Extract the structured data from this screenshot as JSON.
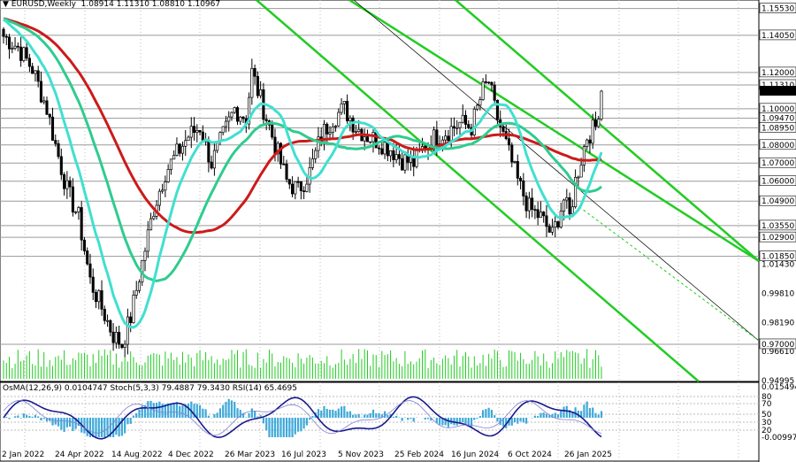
{
  "header": {
    "symbol": "EURUSD,Weekly",
    "ohlc": "1.08914 1.11310 1.08810 1.10967"
  },
  "price_labels": [
    {
      "text": "1.15530",
      "y": 1.1553,
      "hl": true
    },
    {
      "text": "1.14050",
      "y": 1.1405,
      "hl": true
    },
    {
      "text": "1.12000",
      "y": 1.12,
      "hl": true
    },
    {
      "text": "1.11310",
      "y": 1.1131,
      "hl": true
    },
    {
      "text": "1.10967",
      "y": 1.10967,
      "hl": false,
      "current": true
    },
    {
      "text": "1.10000",
      "y": 1.1,
      "hl": true
    },
    {
      "text": "1.09470",
      "y": 1.0947,
      "hl": true
    },
    {
      "text": "1.08950",
      "y": 1.0895,
      "hl": true
    },
    {
      "text": "1.08000",
      "y": 1.08,
      "hl": true
    },
    {
      "text": "1.07000",
      "y": 1.07,
      "hl": true
    },
    {
      "text": "1.06000",
      "y": 1.06,
      "hl": true
    },
    {
      "text": "1.04900",
      "y": 1.049,
      "hl": true
    },
    {
      "text": "1.03550",
      "y": 1.0355,
      "hl": true
    },
    {
      "text": "1.02900",
      "y": 1.029,
      "hl": true
    },
    {
      "text": "1.01850",
      "y": 1.0185,
      "hl": true
    },
    {
      "text": "1.01430",
      "y": 1.0143,
      "hl": false
    },
    {
      "text": "0.99810",
      "y": 0.9981,
      "hl": false
    },
    {
      "text": "0.98190",
      "y": 0.9819,
      "hl": false
    },
    {
      "text": "0.97000",
      "y": 0.97,
      "hl": true
    },
    {
      "text": "0.96610",
      "y": 0.9661,
      "hl": false
    },
    {
      "text": "0.94995",
      "y": 0.94995,
      "hl": false
    }
  ],
  "x_labels": [
    "2 Jan 2022",
    "24 Apr 2022",
    "14 Aug 2022",
    "4 Dec 2022",
    "26 Mar 2023",
    "16 Jul 2023",
    "5 Nov 2023",
    "25 Feb 2024",
    "16 Jun 2024",
    "6 Oct 2024",
    "26 Jan 2025"
  ],
  "indicator": {
    "title": "OsMA(12,26,9) 0.0104747  Stoch(5,3,3) 79.4887 79.3430  RSI(14) 65.4695",
    "levels": [
      "0.015494",
      "80",
      "70",
      "50",
      "30",
      "20",
      "-0.009970"
    ]
  },
  "colors": {
    "candle": "#000000",
    "ma_red": "#cc1a1a",
    "ma_green": "#2ecc8f",
    "ma_cyan": "#40e0d0",
    "channel": "#22cc22",
    "grid": "#9a9a9a",
    "volume": "#22cc22",
    "osma": "#3fa9d9",
    "stoch": "#1a1a8c",
    "rsi": "#8080d0"
  },
  "chart_data": {
    "type": "candlestick",
    "title": "EURUSD,Weekly",
    "ylim": [
      0.94995,
      1.16
    ],
    "x_tick_labels": [
      "2 Jan 2022",
      "24 Apr 2022",
      "14 Aug 2022",
      "4 Dec 2022",
      "26 Mar 2023",
      "16 Jul 2023",
      "5 Nov 2023",
      "25 Feb 2024",
      "16 Jun 2024",
      "6 Oct 2024",
      "26 Jan 2025"
    ],
    "close_path": [
      [
        0,
        1.14
      ],
      [
        5,
        1.134
      ],
      [
        10,
        1.122
      ],
      [
        15,
        1.1
      ],
      [
        18,
        1.08
      ],
      [
        22,
        1.055
      ],
      [
        26,
        1.04
      ],
      [
        30,
        1.005
      ],
      [
        34,
        0.99
      ],
      [
        38,
        0.975
      ],
      [
        41,
        0.97
      ],
      [
        44,
        0.985
      ],
      [
        48,
        1.015
      ],
      [
        52,
        1.045
      ],
      [
        56,
        1.065
      ],
      [
        60,
        1.075
      ],
      [
        64,
        1.085
      ],
      [
        68,
        1.09
      ],
      [
        72,
        1.07
      ],
      [
        76,
        1.085
      ],
      [
        80,
        1.1
      ],
      [
        84,
        1.095
      ],
      [
        86,
        1.12
      ],
      [
        90,
        1.1
      ],
      [
        94,
        1.08
      ],
      [
        98,
        1.06
      ],
      [
        102,
        1.055
      ],
      [
        106,
        1.065
      ],
      [
        110,
        1.085
      ],
      [
        114,
        1.095
      ],
      [
        118,
        1.1
      ],
      [
        122,
        1.09
      ],
      [
        126,
        1.085
      ],
      [
        130,
        1.082
      ],
      [
        134,
        1.078
      ],
      [
        138,
        1.072
      ],
      [
        142,
        1.07
      ],
      [
        146,
        1.08
      ],
      [
        150,
        1.085
      ],
      [
        154,
        1.088
      ],
      [
        158,
        1.092
      ],
      [
        162,
        1.09
      ],
      [
        166,
        1.11
      ],
      [
        168,
        1.115
      ],
      [
        170,
        1.1
      ],
      [
        174,
        1.08
      ],
      [
        178,
        1.06
      ],
      [
        182,
        1.045
      ],
      [
        186,
        1.04
      ],
      [
        190,
        1.03
      ],
      [
        194,
        1.05
      ],
      [
        196,
        1.04
      ],
      [
        198,
        1.06
      ],
      [
        202,
        1.085
      ],
      [
        205,
        1.09
      ],
      [
        207,
        1.1097
      ]
    ],
    "series": [
      {
        "name": "MA 200",
        "color": "#cc1a1a"
      },
      {
        "name": "MA 144",
        "color": "#2ecc8f"
      },
      {
        "name": "MA 50",
        "color": "#40e0d0"
      }
    ]
  }
}
